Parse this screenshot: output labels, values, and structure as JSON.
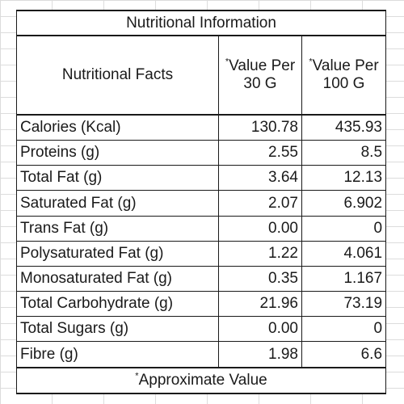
{
  "table": {
    "title": "Nutritional Information",
    "headers": {
      "facts": "Nutritional Facts",
      "per_30g": "Value Per 30 G",
      "per_100g": "Value Per 100 G",
      "marker": "*"
    },
    "rows": [
      {
        "name": "Calories (Kcal)",
        "per_30g": "130.78",
        "per_100g": "435.93"
      },
      {
        "name": "Proteins (g)",
        "per_30g": "2.55",
        "per_100g": "8.5"
      },
      {
        "name": "Total Fat (g)",
        "per_30g": "3.64",
        "per_100g": "12.13"
      },
      {
        "name": "Saturated Fat (g)",
        "per_30g": "2.07",
        "per_100g": "6.902"
      },
      {
        "name": "Trans Fat (g)",
        "per_30g": "0.00",
        "per_100g": "0"
      },
      {
        "name": "Polysaturated Fat (g)",
        "per_30g": "1.22",
        "per_100g": "4.061"
      },
      {
        "name": "Monosaturated Fat (g)",
        "per_30g": "0.35",
        "per_100g": "1.167"
      },
      {
        "name": "Total Carbohydrate (g)",
        "per_30g": "21.96",
        "per_100g": "73.19"
      },
      {
        "name": "Total Sugars (g)",
        "per_30g": "0.00",
        "per_100g": "0"
      },
      {
        "name": "Fibre (g)",
        "per_30g": "1.98",
        "per_100g": "6.6"
      }
    ],
    "footnote": "Approximate Value"
  }
}
